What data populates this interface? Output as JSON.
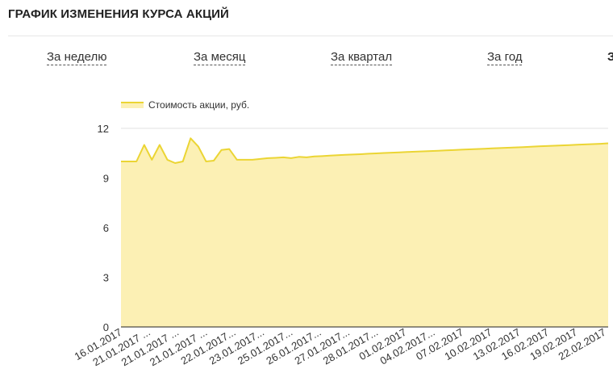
{
  "header": {
    "title": "ГРАФИК ИЗМЕНЕНИЯ КУРСА АКЦИЙ"
  },
  "tabs": [
    {
      "label": "За неделю"
    },
    {
      "label": "За месяц"
    },
    {
      "label": "За квартал"
    },
    {
      "label": "За год"
    },
    {
      "label": "З"
    }
  ],
  "colors": {
    "fill": "#fcf0b4",
    "line": "#ebd534",
    "grid": "#e0e0e0",
    "axis": "#222222"
  },
  "chart_data": {
    "type": "area",
    "legend": {
      "label": "Стоимость акции, руб.",
      "position": "top-left"
    },
    "ylim": [
      0,
      12
    ],
    "yticks": [
      0,
      3,
      6,
      9,
      12
    ],
    "grid": true,
    "x_tick_labels": [
      "16.01.2017",
      "21.01.2017 ...",
      "21.01.2017 ...",
      "21.01.2017 ...",
      "22.01.2017...",
      "23.01.2017...",
      "25.01.2017...",
      "26.01.2017...",
      "27.01.2017...",
      "28.01.2017...",
      "01.02.2017",
      "04.02.2017...",
      "07.02.2017",
      "10.02.2017",
      "13.02.2017",
      "16.02.2017",
      "19.02.2017",
      "22.02.2017"
    ],
    "values": [
      10.0,
      10.0,
      10.0,
      11.0,
      10.1,
      11.0,
      10.1,
      9.9,
      10.0,
      11.4,
      10.9,
      10.0,
      10.05,
      10.7,
      10.75,
      10.1,
      10.1,
      10.1,
      10.15,
      10.2,
      10.22,
      10.25,
      10.2,
      10.28,
      10.25,
      10.3,
      10.32,
      10.35,
      10.38,
      10.4,
      10.42,
      10.44,
      10.47,
      10.49,
      10.51,
      10.53,
      10.55,
      10.57,
      10.59,
      10.61,
      10.63,
      10.65,
      10.67,
      10.69,
      10.71,
      10.73,
      10.75,
      10.77,
      10.79,
      10.81,
      10.83,
      10.85,
      10.87,
      10.89,
      10.91,
      10.93,
      10.95,
      10.97,
      10.99,
      11.01,
      11.03,
      11.05,
      11.07,
      11.1
    ]
  }
}
